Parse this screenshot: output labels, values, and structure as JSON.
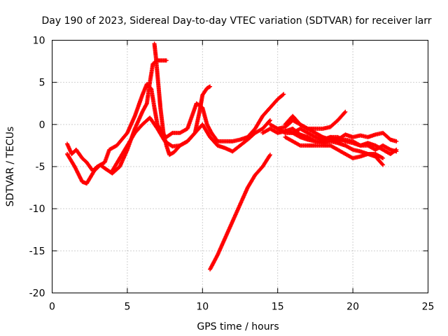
{
  "chart_data": {
    "type": "scatter",
    "title": "Day 190 of 2023, Sidereal Day-to-day VTEC variation (SDTVAR) for receiver larr",
    "xlabel": "GPS time / hours",
    "ylabel": "SDTVAR / TECUs",
    "xlim": [
      0,
      25
    ],
    "ylim": [
      -20,
      10
    ],
    "x_ticks": [
      0,
      5,
      10,
      15,
      20,
      25
    ],
    "y_ticks": [
      -20,
      -15,
      -10,
      -5,
      0,
      5,
      10
    ],
    "x_tick_labels": [
      "0",
      "5",
      "10",
      "15",
      "20",
      "25"
    ],
    "y_tick_labels": [
      "-20",
      "-15",
      "-10",
      "-5",
      "0",
      "5",
      "10"
    ],
    "grid": true,
    "marker": "plus",
    "color": "#ff0000",
    "series": [
      {
        "points": [
          [
            1.0,
            -3.5
          ],
          [
            1.5,
            -5.0
          ],
          [
            2.0,
            -6.8
          ],
          [
            2.3,
            -7.0
          ],
          [
            2.8,
            -5.5
          ],
          [
            3.2,
            -4.8
          ],
          [
            3.5,
            -5.2
          ],
          [
            4.0,
            -5.8
          ],
          [
            4.5,
            -5.0
          ],
          [
            5.0,
            -3.0
          ],
          [
            5.5,
            -0.5
          ],
          [
            6.0,
            1.5
          ],
          [
            6.3,
            2.5
          ],
          [
            6.5,
            5.0
          ],
          [
            6.7,
            7.2
          ],
          [
            7.0,
            7.6
          ],
          [
            7.4,
            7.6
          ],
          [
            7.6,
            7.6
          ]
        ]
      },
      {
        "points": [
          [
            6.8,
            9.6
          ],
          [
            6.9,
            8.0
          ],
          [
            7.0,
            6.0
          ],
          [
            7.1,
            4.0
          ],
          [
            7.2,
            2.0
          ],
          [
            7.3,
            0.5
          ],
          [
            7.4,
            -1.0
          ],
          [
            7.6,
            -2.5
          ],
          [
            7.8,
            -3.6
          ],
          [
            8.1,
            -3.3
          ],
          [
            8.5,
            -2.5
          ],
          [
            9.0,
            -2.0
          ],
          [
            9.5,
            -1.0
          ],
          [
            10.0,
            0.0
          ],
          [
            10.5,
            -1.5
          ],
          [
            11.0,
            -2.5
          ],
          [
            11.5,
            -2.8
          ],
          [
            12.0,
            -3.2
          ],
          [
            12.5,
            -2.5
          ],
          [
            13.0,
            -1.8
          ],
          [
            13.5,
            -1.0
          ],
          [
            14.0,
            -0.5
          ],
          [
            14.5,
            0.5
          ]
        ]
      },
      {
        "points": [
          [
            1.0,
            -2.3
          ],
          [
            1.3,
            -3.5
          ],
          [
            1.6,
            -3.0
          ],
          [
            2.0,
            -4.0
          ],
          [
            2.3,
            -4.5
          ],
          [
            2.7,
            -5.5
          ],
          [
            3.0,
            -5.0
          ],
          [
            3.5,
            -4.5
          ],
          [
            3.8,
            -3.0
          ],
          [
            4.3,
            -2.5
          ],
          [
            5.0,
            -1.0
          ],
          [
            5.5,
            1.0
          ],
          [
            6.0,
            3.5
          ],
          [
            6.3,
            4.8
          ],
          [
            6.6,
            4.2
          ],
          [
            6.8,
            2.0
          ],
          [
            7.0,
            0.0
          ],
          [
            7.3,
            -1.0
          ],
          [
            7.6,
            -1.5
          ],
          [
            8.0,
            -1.0
          ],
          [
            8.5,
            -1.0
          ],
          [
            9.0,
            -0.5
          ],
          [
            9.3,
            1.0
          ],
          [
            9.6,
            2.5
          ],
          [
            10.0,
            2.0
          ],
          [
            10.3,
            0.0
          ],
          [
            10.6,
            -1.0
          ],
          [
            11.0,
            -2.0
          ],
          [
            11.5,
            -2.0
          ],
          [
            12.0,
            -2.0
          ],
          [
            12.5,
            -1.8
          ],
          [
            13.0,
            -1.5
          ],
          [
            13.5,
            -0.5
          ],
          [
            14.0,
            1.0
          ],
          [
            14.5,
            2.0
          ],
          [
            15.0,
            3.0
          ],
          [
            15.4,
            3.6
          ]
        ]
      },
      {
        "points": [
          [
            4.0,
            -5.5
          ],
          [
            4.5,
            -4.0
          ],
          [
            5.0,
            -2.5
          ],
          [
            5.5,
            -1.0
          ],
          [
            6.0,
            0.0
          ],
          [
            6.5,
            0.8
          ],
          [
            7.0,
            -0.5
          ],
          [
            7.5,
            -2.0
          ],
          [
            8.0,
            -2.6
          ],
          [
            8.5,
            -2.5
          ],
          [
            9.0,
            -2.0
          ],
          [
            9.5,
            -1.0
          ],
          [
            9.8,
            1.5
          ],
          [
            10.0,
            3.5
          ],
          [
            10.3,
            4.3
          ],
          [
            10.5,
            4.5
          ]
        ]
      },
      {
        "points": [
          [
            10.5,
            -17.2
          ],
          [
            11.0,
            -15.5
          ],
          [
            11.5,
            -13.5
          ],
          [
            12.0,
            -11.5
          ],
          [
            12.5,
            -9.5
          ],
          [
            13.0,
            -7.5
          ],
          [
            13.5,
            -6.0
          ],
          [
            14.0,
            -5.0
          ],
          [
            14.5,
            -3.6
          ]
        ]
      },
      {
        "points": [
          [
            14.0,
            -1.0
          ],
          [
            14.5,
            -0.5
          ],
          [
            15.0,
            -1.0
          ],
          [
            15.5,
            -0.8
          ],
          [
            16.0,
            -0.5
          ],
          [
            16.5,
            -1.2
          ],
          [
            17.0,
            -1.5
          ],
          [
            17.5,
            -2.0
          ],
          [
            18.0,
            -2.0
          ],
          [
            18.5,
            -1.5
          ],
          [
            19.0,
            -1.8
          ],
          [
            19.5,
            -1.2
          ],
          [
            20.0,
            -1.5
          ],
          [
            20.5,
            -1.3
          ],
          [
            21.0,
            -1.5
          ],
          [
            21.5,
            -1.2
          ],
          [
            22.0,
            -1.0
          ],
          [
            22.5,
            -1.8
          ],
          [
            22.9,
            -2.0
          ]
        ]
      },
      {
        "points": [
          [
            15.0,
            -0.5
          ],
          [
            15.5,
            -0.3
          ],
          [
            16.0,
            0.5
          ],
          [
            16.5,
            0.0
          ],
          [
            17.0,
            -0.5
          ],
          [
            17.5,
            -0.5
          ],
          [
            18.0,
            -0.5
          ],
          [
            18.5,
            -0.3
          ],
          [
            19.0,
            0.5
          ],
          [
            19.5,
            1.5
          ]
        ]
      },
      {
        "points": [
          [
            14.5,
            0.0
          ],
          [
            15.0,
            -0.5
          ],
          [
            15.5,
            -1.0
          ],
          [
            16.0,
            -1.0
          ],
          [
            16.5,
            -1.5
          ],
          [
            17.0,
            -1.8
          ],
          [
            17.5,
            -2.0
          ],
          [
            18.0,
            -2.2
          ],
          [
            18.5,
            -2.0
          ],
          [
            19.0,
            -2.2
          ],
          [
            19.5,
            -2.5
          ],
          [
            20.0,
            -3.0
          ],
          [
            20.5,
            -3.2
          ],
          [
            21.0,
            -3.5
          ],
          [
            21.5,
            -3.8
          ],
          [
            22.0,
            -4.8
          ]
        ]
      },
      {
        "points": [
          [
            15.5,
            0.0
          ],
          [
            16.0,
            1.0
          ],
          [
            16.5,
            0.0
          ],
          [
            17.0,
            -0.5
          ],
          [
            17.5,
            -1.0
          ],
          [
            18.0,
            -1.5
          ],
          [
            18.5,
            -1.8
          ],
          [
            19.0,
            -2.0
          ],
          [
            19.5,
            -1.8
          ],
          [
            20.0,
            -2.0
          ],
          [
            20.5,
            -2.5
          ],
          [
            21.0,
            -2.5
          ],
          [
            21.5,
            -3.0
          ],
          [
            22.0,
            -2.5
          ],
          [
            22.5,
            -3.0
          ],
          [
            22.9,
            -3.2
          ]
        ]
      },
      {
        "points": [
          [
            15.5,
            -1.5
          ],
          [
            16.0,
            -2.0
          ],
          [
            16.5,
            -2.5
          ],
          [
            17.0,
            -2.5
          ],
          [
            17.5,
            -2.5
          ],
          [
            18.0,
            -2.5
          ],
          [
            18.5,
            -2.5
          ],
          [
            19.0,
            -3.0
          ],
          [
            19.5,
            -3.5
          ],
          [
            20.0,
            -4.0
          ],
          [
            20.5,
            -3.8
          ],
          [
            21.0,
            -3.5
          ],
          [
            21.5,
            -3.5
          ],
          [
            22.0,
            -4.0
          ]
        ]
      },
      {
        "points": [
          [
            15.5,
            -0.8
          ],
          [
            16.0,
            -1.0
          ],
          [
            16.5,
            -0.5
          ],
          [
            17.0,
            -1.0
          ],
          [
            17.5,
            -1.5
          ],
          [
            18.0,
            -1.8
          ],
          [
            18.5,
            -1.5
          ],
          [
            19.0,
            -1.5
          ],
          [
            19.5,
            -2.0
          ],
          [
            20.0,
            -2.2
          ],
          [
            20.5,
            -2.5
          ],
          [
            21.0,
            -2.2
          ],
          [
            21.5,
            -2.5
          ],
          [
            22.0,
            -3.0
          ],
          [
            22.5,
            -3.5
          ],
          [
            22.9,
            -3.0
          ]
        ]
      }
    ]
  }
}
